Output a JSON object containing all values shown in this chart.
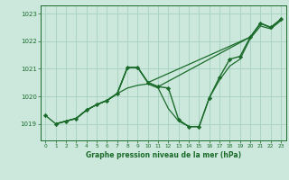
{
  "background_color": "#cce8dc",
  "grid_color": "#aad4c4",
  "line_color": "#1a6b2a",
  "title": "Graphe pression niveau de la mer (hPa)",
  "xlim": [
    -0.5,
    23.5
  ],
  "ylim": [
    1018.4,
    1023.3
  ],
  "yticks": [
    1019,
    1020,
    1021,
    1022,
    1023
  ],
  "xticks": [
    0,
    1,
    2,
    3,
    4,
    5,
    6,
    7,
    8,
    9,
    10,
    11,
    12,
    13,
    14,
    15,
    16,
    17,
    18,
    19,
    20,
    21,
    22,
    23
  ],
  "series": [
    {
      "x": [
        0,
        1,
        2,
        3,
        4,
        5,
        6,
        7,
        8,
        9,
        10,
        11,
        12,
        13,
        14,
        15,
        16,
        17,
        18,
        19,
        20,
        21,
        22,
        23
      ],
      "y": [
        1019.3,
        1019.0,
        1019.1,
        1019.2,
        1019.5,
        1019.7,
        1019.85,
        1020.1,
        1021.05,
        1021.05,
        1020.5,
        1020.35,
        1020.3,
        1019.15,
        1018.9,
        1018.9,
        1019.95,
        1020.7,
        1021.35,
        1021.45,
        1022.15,
        1022.65,
        1022.5,
        1022.8
      ],
      "marker": "D",
      "markersize": 2.2,
      "linewidth": 1.0
    },
    {
      "x": [
        1,
        2,
        3,
        4,
        5,
        6,
        7,
        8,
        9,
        10,
        11,
        20,
        21,
        22,
        23
      ],
      "y": [
        1019.0,
        1019.1,
        1019.2,
        1019.5,
        1019.7,
        1019.85,
        1020.1,
        1021.05,
        1021.05,
        1020.5,
        1020.35,
        1022.15,
        1022.65,
        1022.5,
        1022.8
      ],
      "marker": null,
      "linewidth": 0.9
    },
    {
      "x": [
        1,
        2,
        3,
        4,
        5,
        6,
        7,
        8,
        9,
        10,
        20,
        21,
        22,
        23
      ],
      "y": [
        1019.0,
        1019.1,
        1019.2,
        1019.5,
        1019.7,
        1019.85,
        1020.1,
        1021.05,
        1021.05,
        1020.5,
        1022.15,
        1022.65,
        1022.5,
        1022.8
      ],
      "marker": null,
      "linewidth": 0.9
    },
    {
      "x": [
        1,
        2,
        3,
        4,
        5,
        6,
        7,
        8,
        9,
        10,
        11,
        12,
        13,
        14,
        15,
        16,
        17,
        18,
        19,
        20,
        21,
        22,
        23
      ],
      "y": [
        1019.0,
        1019.1,
        1019.2,
        1019.5,
        1019.7,
        1019.85,
        1020.1,
        1020.3,
        1020.4,
        1020.45,
        1020.3,
        1019.55,
        1019.1,
        1018.9,
        1018.9,
        1019.95,
        1020.6,
        1021.1,
        1021.35,
        1022.1,
        1022.55,
        1022.45,
        1022.75
      ],
      "marker": null,
      "linewidth": 0.9
    }
  ]
}
